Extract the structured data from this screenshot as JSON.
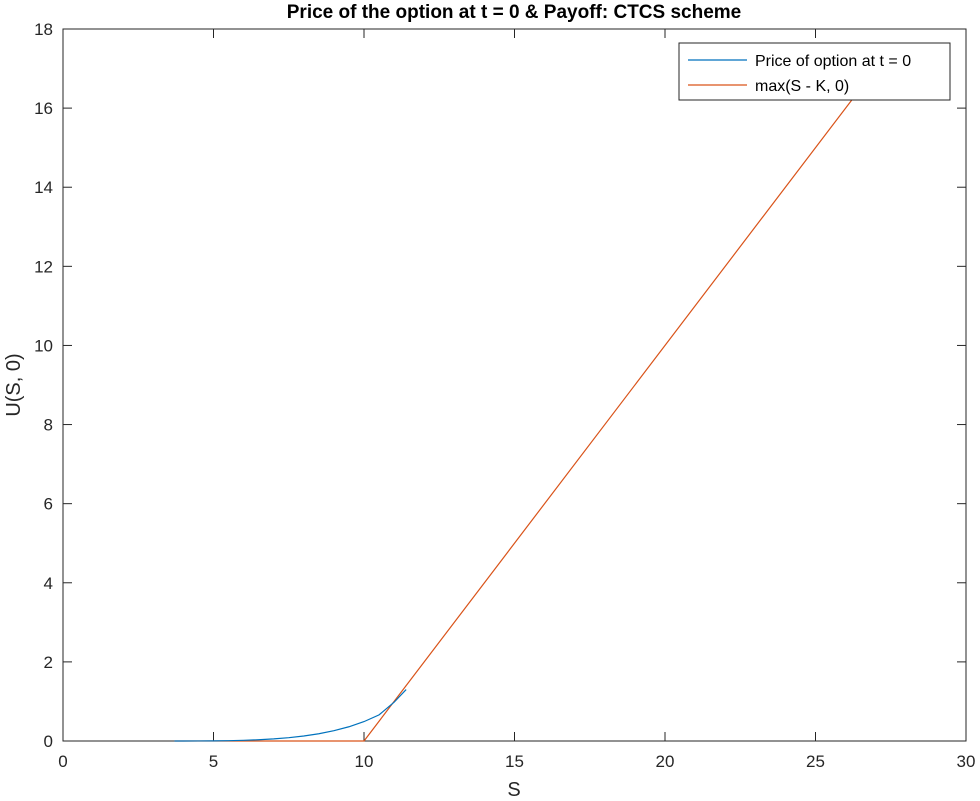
{
  "chart_data": {
    "type": "line",
    "title": "Price of the option at t = 0 & Payoff: CTCS scheme",
    "xlabel": "S",
    "ylabel": "U(S, 0)",
    "xlim": [
      0,
      30
    ],
    "ylim": [
      0,
      18
    ],
    "xticks": [
      0,
      5,
      10,
      15,
      20,
      25,
      30
    ],
    "yticks": [
      0,
      2,
      4,
      6,
      8,
      10,
      12,
      14,
      16,
      18
    ],
    "grid": false,
    "legend_position": "top-right",
    "series": [
      {
        "name": "Price of option at t = 0",
        "color": "#0072BD",
        "x": [
          3.7,
          4,
          4.5,
          5,
          5.5,
          6,
          6.5,
          7,
          7.5,
          8,
          8.5,
          9,
          9.5,
          10,
          10.5,
          11,
          11.4
        ],
        "y": [
          0,
          0,
          0.001,
          0.003,
          0.008,
          0.017,
          0.031,
          0.053,
          0.084,
          0.126,
          0.183,
          0.26,
          0.36,
          0.49,
          0.66,
          0.98,
          1.3
        ]
      },
      {
        "name": "max(S - K, 0)",
        "color": "#D95319",
        "x": [
          3.7,
          10,
          26.2
        ],
        "y": [
          0,
          0,
          16.2
        ]
      }
    ]
  }
}
